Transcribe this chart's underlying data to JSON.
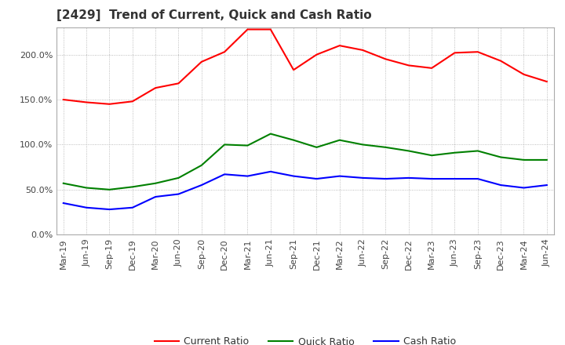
{
  "title": "[2429]  Trend of Current, Quick and Cash Ratio",
  "labels": [
    "Mar-19",
    "Jun-19",
    "Sep-19",
    "Dec-19",
    "Mar-20",
    "Jun-20",
    "Sep-20",
    "Dec-20",
    "Mar-21",
    "Jun-21",
    "Sep-21",
    "Dec-21",
    "Mar-22",
    "Jun-22",
    "Sep-22",
    "Dec-22",
    "Mar-23",
    "Jun-23",
    "Sep-23",
    "Dec-23",
    "Mar-24",
    "Jun-24"
  ],
  "current_ratio": [
    150.0,
    147.0,
    145.0,
    148.0,
    163.0,
    168.0,
    192.0,
    203.0,
    228.0,
    228.0,
    183.0,
    200.0,
    210.0,
    205.0,
    195.0,
    188.0,
    185.0,
    202.0,
    203.0,
    193.0,
    178.0,
    170.0
  ],
  "quick_ratio": [
    57.0,
    52.0,
    50.0,
    53.0,
    57.0,
    63.0,
    77.0,
    100.0,
    99.0,
    112.0,
    105.0,
    97.0,
    105.0,
    100.0,
    97.0,
    93.0,
    88.0,
    91.0,
    93.0,
    86.0,
    83.0,
    83.0
  ],
  "cash_ratio": [
    35.0,
    30.0,
    28.0,
    30.0,
    42.0,
    45.0,
    55.0,
    67.0,
    65.0,
    70.0,
    65.0,
    62.0,
    65.0,
    63.0,
    62.0,
    63.0,
    62.0,
    62.0,
    62.0,
    55.0,
    52.0,
    55.0
  ],
  "current_color": "#FF0000",
  "quick_color": "#008000",
  "cash_color": "#0000FF",
  "ylim": [
    0,
    230
  ],
  "yticks": [
    0,
    50,
    100,
    150,
    200
  ],
  "background_color": "#FFFFFF",
  "grid_color": "#AAAAAA",
  "title_fontsize": 11,
  "tick_fontsize": 8
}
